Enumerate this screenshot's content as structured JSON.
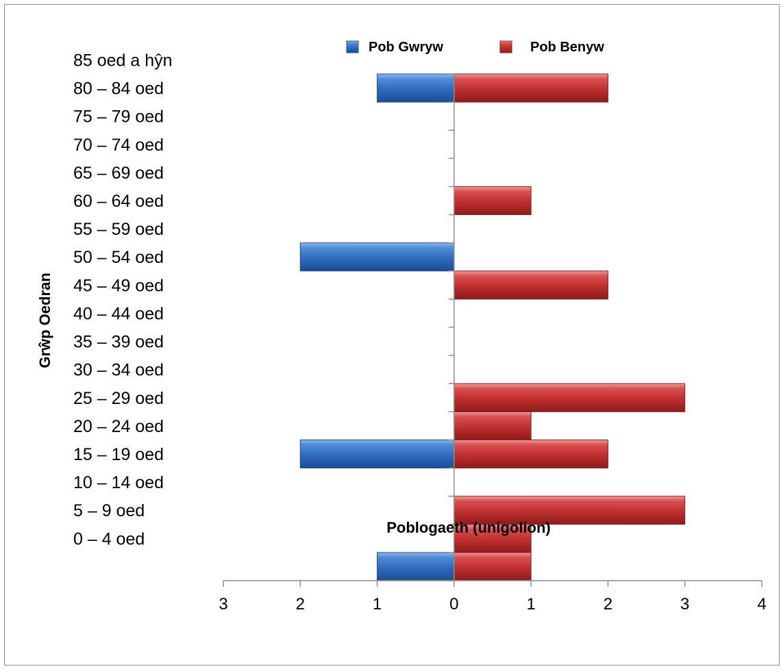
{
  "chart_data": {
    "type": "bar",
    "orientation": "horizontal",
    "layout": "population-pyramid",
    "categories": [
      "0 – 4 oed",
      "5 – 9 oed",
      "10 – 14 oed",
      "15 – 19 oed",
      "20 – 24 oed",
      "25 – 29 oed",
      "30 – 34 oed",
      "35 – 39 oed",
      "40 – 44 oed",
      "45 – 49 oed",
      "50 – 54 oed",
      "55 – 59 oed",
      "60 – 64 oed",
      "65 – 69 oed",
      "70 – 74 oed",
      "75 – 79 oed",
      "80 – 84 oed",
      "85 oed a hŷn"
    ],
    "series": [
      {
        "name": "Pob Gwryw",
        "color": "#3a76c4",
        "side": "left",
        "values": [
          1,
          0,
          0,
          0,
          2,
          0,
          0,
          0,
          0,
          0,
          0,
          2,
          0,
          0,
          0,
          0,
          0,
          1
        ]
      },
      {
        "name": "Pob Benyw",
        "color": "#c83434",
        "side": "right",
        "values": [
          1,
          1,
          3,
          0,
          2,
          1,
          3,
          0,
          0,
          0,
          2,
          0,
          0,
          1,
          0,
          0,
          0,
          2
        ]
      }
    ],
    "xlabel": "Poblogaeth (unigolion)",
    "ylabel": "Grŵp Oedran",
    "xlim": [
      -3,
      4
    ],
    "x_ticks": [
      -3,
      -2,
      -1,
      0,
      1,
      2,
      3,
      4
    ],
    "x_tick_labels": [
      "3",
      "2",
      "1",
      "0",
      "1",
      "2",
      "3",
      "4"
    ],
    "legend_position": "top",
    "grid": false
  }
}
